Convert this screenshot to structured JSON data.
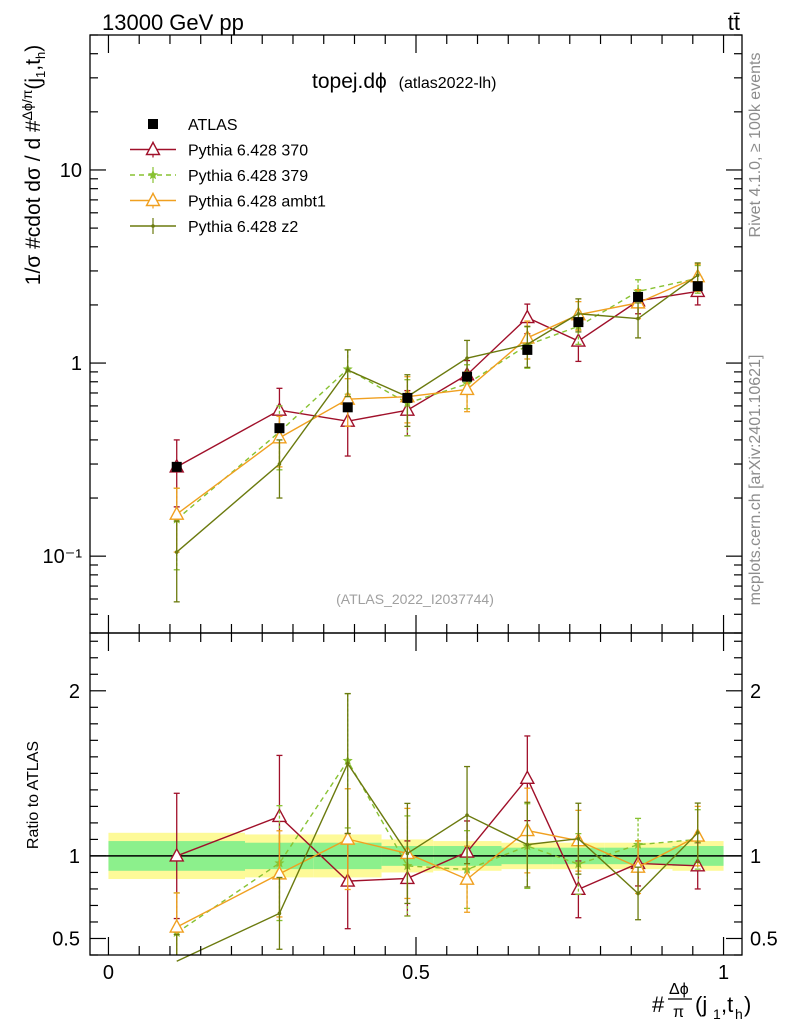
{
  "header": {
    "left": "13000 GeV pp",
    "right": "tt̄"
  },
  "side": {
    "rivet": "Rivet 4.1.0, ≥ 100k events",
    "mcplots": "mcplots.cern.ch [arXiv:2401.10621]"
  },
  "chart_data": {
    "type": "line",
    "title": "topej.dϕ",
    "title_tag": "(atlas2022-lh)",
    "watermark": "(ATLAS_2022_I2037744)",
    "xlabel": "#Δϕ/π(j1,th)",
    "ylabel": "1/σ #cdot dσ / d #Δϕ/π(j1,th)",
    "ratio_ylabel": "Ratio to ATLAS",
    "xlim": [
      -0.03,
      1.03
    ],
    "ylim": [
      0.04,
      50
    ],
    "yscale": "log",
    "ratio_ylim": [
      0.4,
      2.35
    ],
    "x_ticks": [
      "0",
      "0.5",
      "1"
    ],
    "y_ticks": [
      "10⁻¹",
      "1",
      "10"
    ],
    "ratio_ticks": [
      "0.5",
      "1",
      "2"
    ],
    "bin_edges": [
      0,
      0.222,
      0.333,
      0.444,
      0.528,
      0.639,
      0.722,
      0.806,
      0.917,
      1.0
    ],
    "x": [
      0.111,
      0.278,
      0.389,
      0.486,
      0.583,
      0.681,
      0.764,
      0.861,
      0.958
    ],
    "data": {
      "name": "ATLAS",
      "values": [
        0.29,
        0.46,
        0.59,
        0.66,
        0.85,
        1.17,
        1.63,
        2.2,
        2.5
      ],
      "band_inner": [
        0.09,
        0.08,
        0.08,
        0.06,
        0.06,
        0.05,
        0.05,
        0.05,
        0.06
      ],
      "band_outer": [
        0.14,
        0.13,
        0.13,
        0.1,
        0.09,
        0.08,
        0.08,
        0.08,
        0.09
      ]
    },
    "series": [
      {
        "name": "Pythia 6.428 370",
        "color": "#a0102a",
        "marker": "triangle-open",
        "dashed": false,
        "values": [
          0.29,
          0.57,
          0.5,
          0.57,
          0.87,
          1.72,
          1.3,
          2.1,
          2.35
        ],
        "err": [
          0.11,
          0.17,
          0.17,
          0.15,
          0.16,
          0.3,
          0.28,
          0.3,
          0.35
        ]
      },
      {
        "name": "Pythia 6.428 379",
        "color": "#88c232",
        "marker": "star",
        "dashed": true,
        "values": [
          0.155,
          0.44,
          0.93,
          0.62,
          0.78,
          1.24,
          1.55,
          2.35,
          2.75
        ],
        "err": [
          0.07,
          0.16,
          0.24,
          0.2,
          0.2,
          0.3,
          0.3,
          0.35,
          0.45
        ]
      },
      {
        "name": "Pythia 6.428 ambt1",
        "color": "#f0a020",
        "marker": "triangle-open",
        "dashed": false,
        "values": [
          0.165,
          0.41,
          0.65,
          0.67,
          0.73,
          1.35,
          1.78,
          2.05,
          2.8
        ],
        "err": [
          0.06,
          0.12,
          0.18,
          0.18,
          0.17,
          0.3,
          0.3,
          0.35,
          0.45
        ]
      },
      {
        "name": "Pythia 6.428 z2",
        "color": "#6b7a0e",
        "marker": "dot",
        "dashed": false,
        "values": [
          0.105,
          0.3,
          0.92,
          0.67,
          1.06,
          1.25,
          1.8,
          1.7,
          2.85
        ],
        "err": [
          0.047,
          0.1,
          0.25,
          0.2,
          0.25,
          0.3,
          0.35,
          0.35,
          0.45
        ]
      }
    ]
  }
}
